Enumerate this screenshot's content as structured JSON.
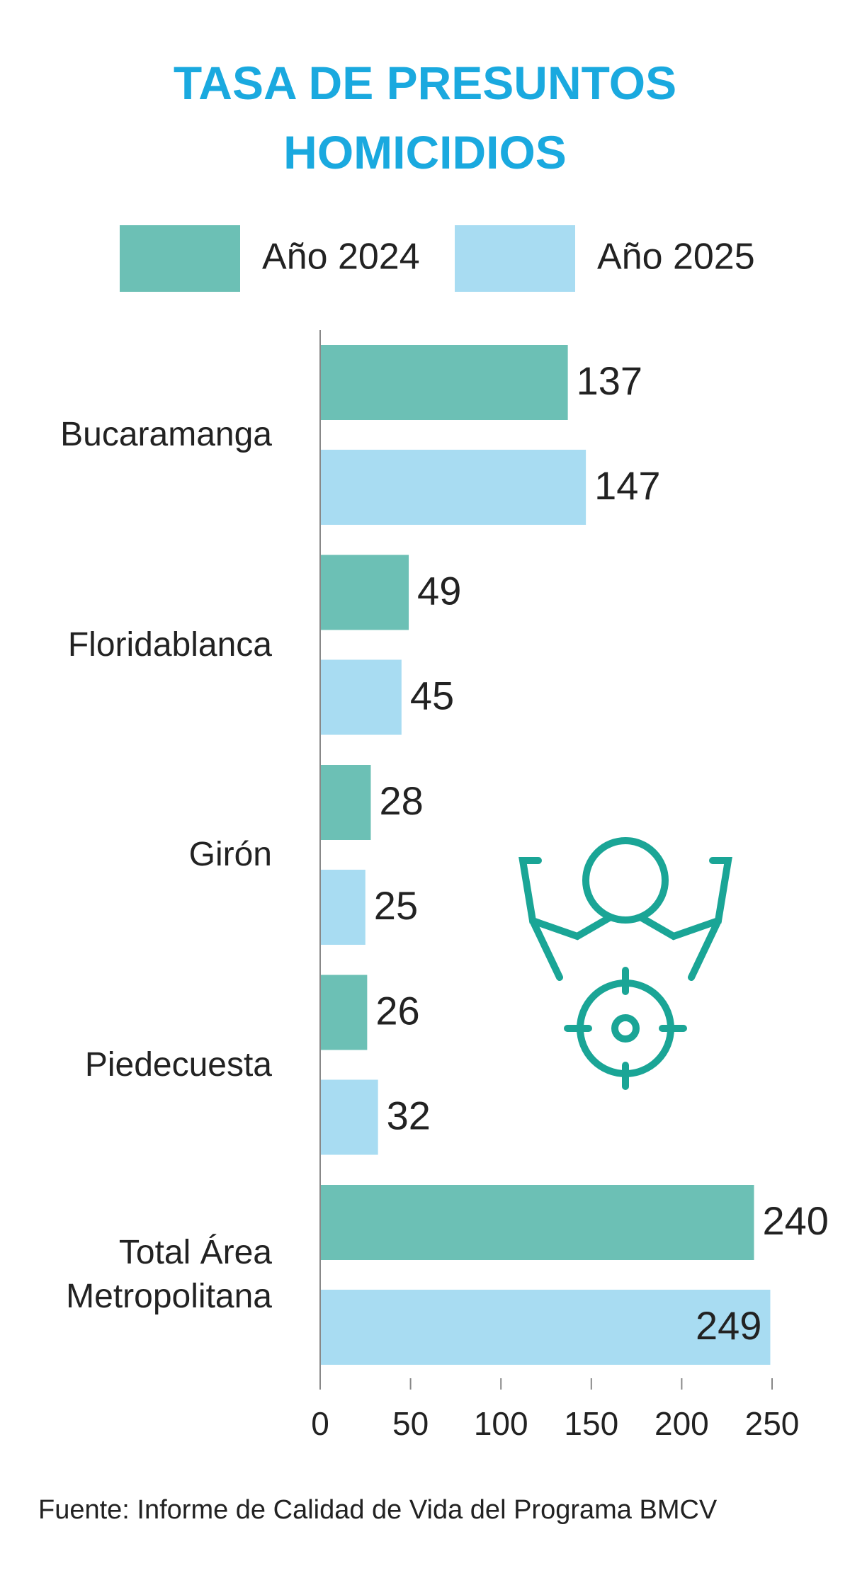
{
  "chart_data": {
    "type": "bar",
    "orientation": "horizontal",
    "title": "TASA DE PRESUNTOS HOMICIDIOS",
    "categories": [
      "Bucaramanga",
      "Floridablanca",
      "Girón",
      "Piedecuesta",
      "Total Área Metropolitana"
    ],
    "series": [
      {
        "name": "Año 2024",
        "color": "#6cc0b5",
        "values": [
          137,
          49,
          28,
          26,
          240
        ]
      },
      {
        "name": "Año 2025",
        "color": "#a8dcf2",
        "values": [
          147,
          45,
          25,
          32,
          249
        ]
      }
    ],
    "xlim": [
      0,
      250
    ],
    "xticks": [
      0,
      50,
      100,
      150,
      200,
      250
    ],
    "source": "Fuente: Informe de Calidad de Vida del Programa BMCV"
  }
}
